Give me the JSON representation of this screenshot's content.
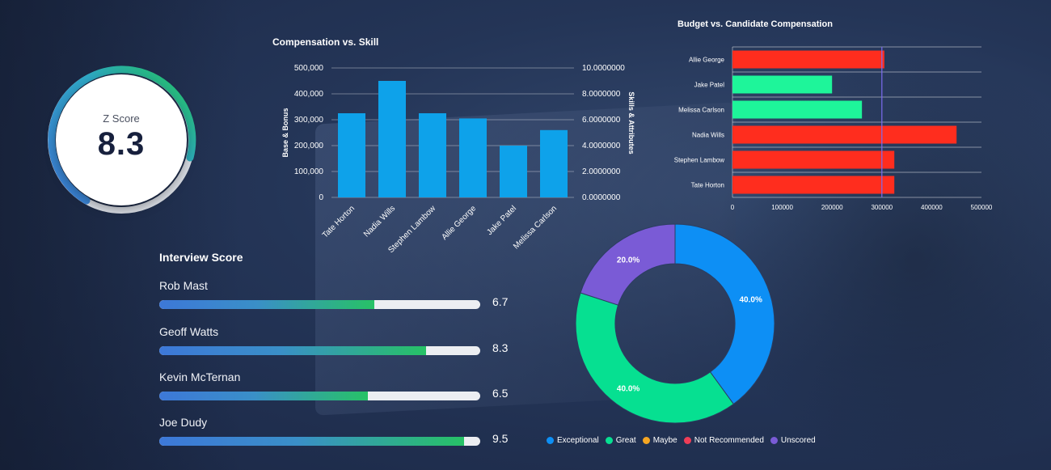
{
  "zscore": {
    "label": "Z Score",
    "value": "8.3"
  },
  "chart_data": [
    {
      "type": "bar",
      "title": "Compensation vs. Skill",
      "categories": [
        "Tate Horton",
        "Nadia Wills",
        "Stephen Lambow",
        "Allie George",
        "Jake Patel",
        "Melissa Carlson"
      ],
      "values": [
        325000,
        450000,
        325000,
        305000,
        200000,
        260000
      ],
      "ylabel": "Base & Bonus",
      "y2label": "Skills & Attributes",
      "ylim": [
        0,
        500000
      ],
      "y2lim": [
        0,
        10
      ],
      "yticks": [
        "0",
        "100,000",
        "200,000",
        "300,000",
        "400,000",
        "500,000"
      ],
      "y2ticks": [
        "0.0000000",
        "2.0000000",
        "4.0000000",
        "6.0000000",
        "8.0000000",
        "10.0000000"
      ],
      "color": "#0ea2ea",
      "grid": true
    },
    {
      "type": "bar",
      "orientation": "horizontal",
      "title": "Budget vs. Candidate Compensation",
      "categories": [
        "Allie George",
        "Jake Patel",
        "Melissa Carlson",
        "Nadia Wills",
        "Stephen Lambow",
        "Tate Horton"
      ],
      "values": [
        305000,
        200000,
        260000,
        450000,
        325000,
        325000
      ],
      "bar_colors": [
        "#ff2d1e",
        "#1ef59a",
        "#1ef59a",
        "#ff2d1e",
        "#ff2d1e",
        "#ff2d1e"
      ],
      "budget_line": 300000,
      "xlim": [
        0,
        500000
      ],
      "xticks": [
        "0",
        "100000",
        "200000",
        "300000",
        "400000",
        "500000"
      ],
      "grid": true
    },
    {
      "type": "pie",
      "variant": "donut",
      "labels": [
        "Exceptional",
        "Great",
        "Maybe",
        "Not Recommended",
        "Unscored"
      ],
      "values": [
        40,
        40,
        0,
        0,
        20
      ],
      "slice_labels": [
        "40.0%",
        "40.0%",
        "",
        "",
        "20.0%"
      ],
      "colors": [
        "#0d8ff5",
        "#06e091",
        "#f5a623",
        "#ef3d57",
        "#7a5bd6"
      ],
      "legend": "bottom"
    }
  ],
  "interview": {
    "title": "Interview Score",
    "rows": [
      {
        "name": "Rob Mast",
        "score": "6.7",
        "fill": 0.67
      },
      {
        "name": "Geoff Watts",
        "score": "8.3",
        "fill": 0.83
      },
      {
        "name": "Kevin McTernan",
        "score": "6.5",
        "fill": 0.65
      },
      {
        "name": "Joe Dudy",
        "score": "9.5",
        "fill": 0.95
      }
    ]
  },
  "legend": [
    {
      "label": "Exceptional",
      "color": "#0d8ff5"
    },
    {
      "label": "Great",
      "color": "#06e091"
    },
    {
      "label": "Maybe",
      "color": "#f5a623"
    },
    {
      "label": "Not Recommended",
      "color": "#ef3d57"
    },
    {
      "label": "Unscored",
      "color": "#7a5bd6"
    }
  ]
}
